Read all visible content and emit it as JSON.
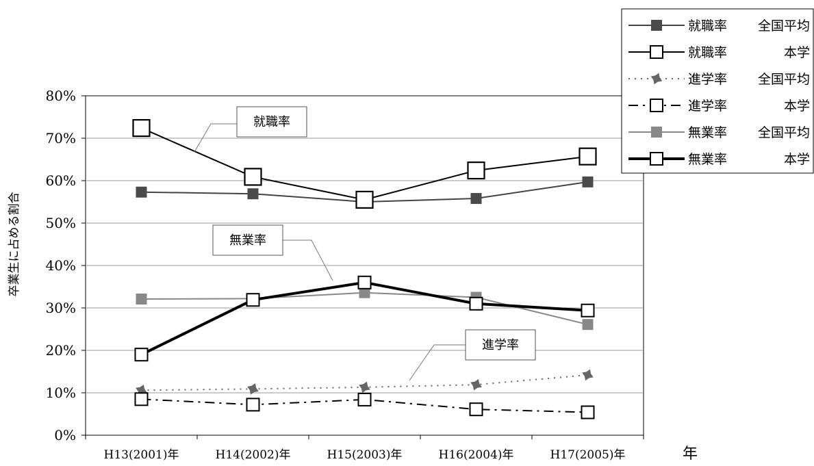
{
  "chart_data": {
    "type": "line",
    "categories": [
      "H13(2001)年",
      "H14(2002)年",
      "H15(2003)年",
      "H16(2004)年",
      "H17(2005)年"
    ],
    "ylabel": "卒業生に占める割合",
    "xlabel": "年",
    "ylim": [
      0,
      0.8
    ],
    "y_ticks": [
      "0%",
      "10%",
      "20%",
      "30%",
      "40%",
      "50%",
      "60%",
      "70%",
      "80%"
    ],
    "grid": "horizontal",
    "legend_position": "top-right",
    "series": [
      {
        "name": "就職率 全国平均",
        "name_parts": [
          "就職率",
          "全国平均"
        ],
        "values": [
          0.573,
          0.569,
          0.55,
          0.558,
          0.597
        ],
        "color": "#444444",
        "line": "solid",
        "width": 2,
        "marker": "filled-square",
        "marker_color": "#4a4a4a"
      },
      {
        "name": "就職率 本学",
        "name_parts": [
          "就職率",
          "本学"
        ],
        "values": [
          0.724,
          0.609,
          0.555,
          0.624,
          0.657
        ],
        "color": "#000000",
        "line": "solid",
        "width": 2,
        "marker": "open-square-large",
        "marker_color": "#000000"
      },
      {
        "name": "進学率 全国平均",
        "name_parts": [
          "進学率",
          "全国平均"
        ],
        "values": [
          0.106,
          0.109,
          0.113,
          0.119,
          0.142
        ],
        "color": "#666666",
        "line": "dotted",
        "width": 2,
        "marker": "filled-star",
        "marker_color": "#666666"
      },
      {
        "name": "進学率 本学",
        "name_parts": [
          "進学率",
          "本学"
        ],
        "values": [
          0.085,
          0.072,
          0.084,
          0.061,
          0.054
        ],
        "color": "#000000",
        "line": "dashdot",
        "width": 2,
        "marker": "open-square",
        "marker_color": "#000000"
      },
      {
        "name": "無業率 全国平均",
        "name_parts": [
          "無業率",
          "全国平均"
        ],
        "values": [
          0.321,
          0.322,
          0.336,
          0.325,
          0.261
        ],
        "color": "#888888",
        "line": "solid",
        "width": 2,
        "marker": "filled-square",
        "marker_color": "#888888"
      },
      {
        "name": "無業率 本学",
        "name_parts": [
          "無業率",
          "本学"
        ],
        "values": [
          0.19,
          0.319,
          0.36,
          0.31,
          0.294
        ],
        "color": "#000000",
        "line": "solid",
        "width": 4,
        "marker": "open-square",
        "marker_color": "#000000"
      }
    ],
    "annotations": [
      {
        "text": "就職率"
      },
      {
        "text": "無業率"
      },
      {
        "text": "進学率"
      }
    ]
  }
}
